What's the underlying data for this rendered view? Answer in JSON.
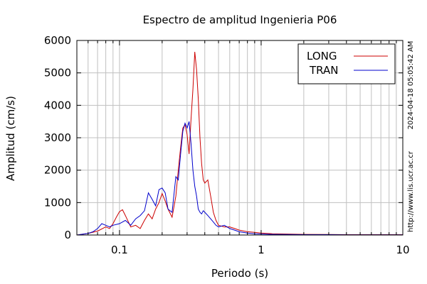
{
  "chart_data": {
    "type": "line",
    "title": "Espectro de amplitud Ingenieria P06",
    "xlabel": "Periodo (s)",
    "ylabel": "Amplitud (cm/s)",
    "x_scale": "log",
    "xlim": [
      0.05,
      10
    ],
    "ylim": [
      0,
      6000
    ],
    "x_ticks": [
      0.1,
      1,
      10
    ],
    "x_tick_labels": [
      "0.1",
      "1",
      "10"
    ],
    "y_ticks": [
      0,
      1000,
      2000,
      3000,
      4000,
      5000,
      6000
    ],
    "y_tick_labels": [
      "0",
      "1000",
      "2000",
      "3000",
      "4000",
      "5000",
      "6000"
    ],
    "grid": true,
    "legend_position": "top-right",
    "side_texts": [
      "2024-04-18 05:05:42 AM",
      "http://www.lis.ucr.ac.cr"
    ],
    "series": [
      {
        "name": "LONG",
        "color": "#cc0000",
        "x": [
          0.05,
          0.06,
          0.07,
          0.08,
          0.085,
          0.09,
          0.095,
          0.1,
          0.105,
          0.11,
          0.12,
          0.13,
          0.14,
          0.15,
          0.16,
          0.17,
          0.18,
          0.19,
          0.2,
          0.21,
          0.22,
          0.235,
          0.25,
          0.26,
          0.27,
          0.28,
          0.29,
          0.3,
          0.31,
          0.32,
          0.33,
          0.34,
          0.35,
          0.36,
          0.37,
          0.38,
          0.39,
          0.4,
          0.42,
          0.44,
          0.46,
          0.48,
          0.5,
          0.55,
          0.6,
          0.65,
          0.7,
          0.8,
          0.9,
          1.0,
          1.2,
          1.5,
          2.0,
          3.0,
          4.0,
          6.0,
          10.0
        ],
        "y": [
          0,
          50,
          120,
          250,
          200,
          350,
          550,
          720,
          780,
          600,
          250,
          300,
          200,
          450,
          650,
          500,
          800,
          1000,
          1280,
          1050,
          800,
          550,
          1200,
          2000,
          2700,
          3300,
          3400,
          3100,
          2500,
          3600,
          4500,
          5650,
          5100,
          4200,
          3000,
          2200,
          1700,
          1600,
          1700,
          1200,
          700,
          450,
          300,
          250,
          250,
          200,
          150,
          100,
          80,
          60,
          40,
          30,
          20,
          15,
          10,
          10,
          10
        ]
      },
      {
        "name": "TRAN",
        "color": "#0000cc",
        "x": [
          0.05,
          0.06,
          0.065,
          0.07,
          0.075,
          0.08,
          0.085,
          0.09,
          0.1,
          0.11,
          0.12,
          0.13,
          0.14,
          0.15,
          0.16,
          0.17,
          0.18,
          0.19,
          0.2,
          0.21,
          0.22,
          0.235,
          0.25,
          0.26,
          0.27,
          0.28,
          0.29,
          0.3,
          0.31,
          0.32,
          0.33,
          0.34,
          0.35,
          0.36,
          0.37,
          0.38,
          0.39,
          0.4,
          0.42,
          0.44,
          0.46,
          0.48,
          0.5,
          0.55,
          0.6,
          0.65,
          0.7,
          0.8,
          0.9,
          1.0,
          1.2,
          1.5,
          2.0,
          3.0,
          4.0,
          6.0,
          10.0
        ],
        "y": [
          0,
          50,
          100,
          200,
          350,
          300,
          250,
          300,
          350,
          450,
          300,
          500,
          600,
          750,
          1300,
          1100,
          900,
          1400,
          1450,
          1300,
          800,
          700,
          1800,
          1700,
          2500,
          3200,
          3450,
          3300,
          3500,
          2800,
          2000,
          1500,
          1200,
          800,
          700,
          650,
          750,
          700,
          600,
          500,
          400,
          300,
          250,
          300,
          200,
          150,
          100,
          60,
          40,
          30,
          20,
          15,
          10,
          10,
          5,
          5,
          5
        ]
      }
    ]
  }
}
